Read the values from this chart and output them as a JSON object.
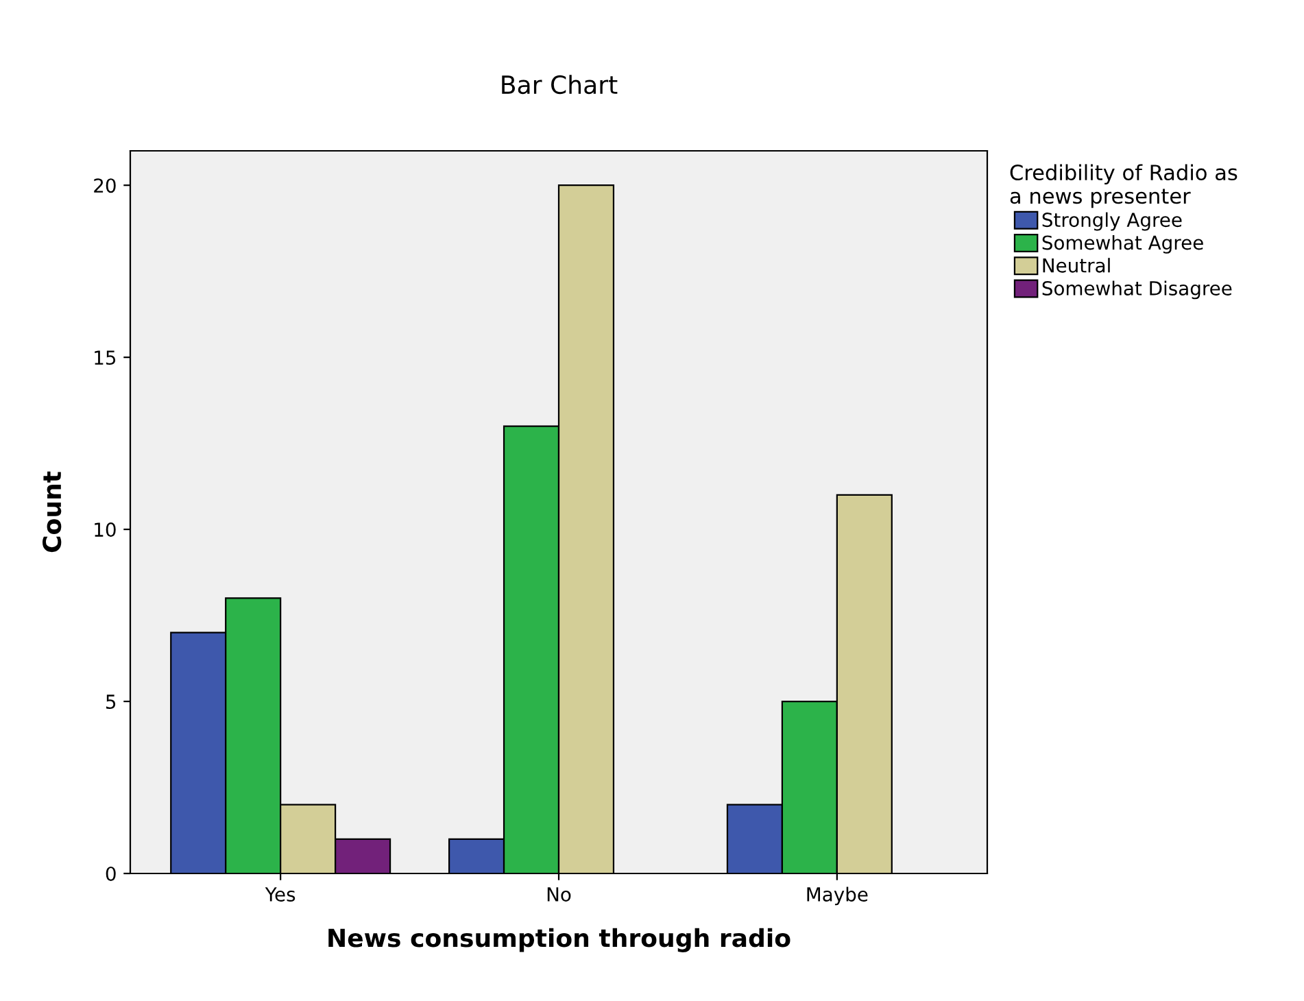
{
  "chart_data": {
    "type": "bar",
    "title": "Bar Chart",
    "xlabel": "News consumption through radio",
    "ylabel": "Count",
    "legend_title": "Credibility of Radio as\na news presenter",
    "categories": [
      "Yes",
      "No",
      "Maybe"
    ],
    "series": [
      {
        "name": "Strongly Agree",
        "color": "#3e58ac",
        "values": [
          7,
          1,
          2
        ]
      },
      {
        "name": "Somewhat Agree",
        "color": "#2cb34a",
        "values": [
          8,
          13,
          5
        ]
      },
      {
        "name": "Neutral",
        "color": "#d3ce97",
        "values": [
          2,
          20,
          11
        ]
      },
      {
        "name": "Somewhat Disagree",
        "color": "#72217a",
        "values": [
          1,
          null,
          null
        ]
      }
    ],
    "ylim": [
      0,
      21
    ],
    "yticks": [
      0,
      5,
      10,
      15,
      20
    ],
    "grid": false,
    "legend": "top right"
  }
}
